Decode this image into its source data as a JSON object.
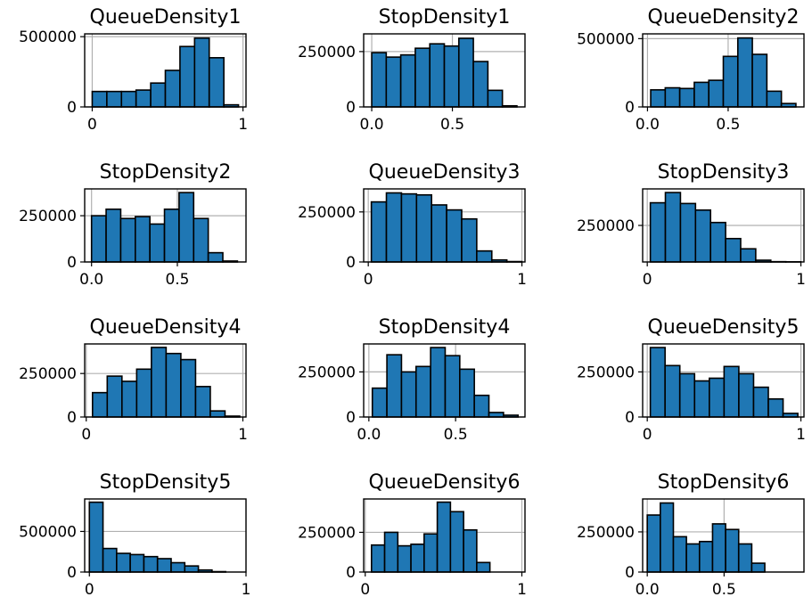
{
  "chart_data": [
    {
      "type": "bar",
      "title": "QueueDensity1",
      "bins": {
        "start": 0.0,
        "end": 0.97,
        "count": 10
      },
      "values": [
        110000,
        110000,
        110000,
        120000,
        170000,
        260000,
        430000,
        490000,
        350000,
        15000
      ],
      "xlim": [
        -0.05,
        1.02
      ],
      "ylim": [
        0,
        520000
      ],
      "xticks": [
        0,
        1
      ],
      "xtick_labels": [
        "0",
        "1"
      ],
      "yticks": [
        0,
        500000
      ],
      "ytick_labels": [
        "0",
        "500000"
      ]
    },
    {
      "type": "bar",
      "title": "StopDensity1",
      "bins": {
        "start": 0.0,
        "end": 0.9,
        "count": 10
      },
      "values": [
        245000,
        225000,
        235000,
        265000,
        285000,
        275000,
        310000,
        205000,
        75000,
        5000
      ],
      "xlim": [
        -0.05,
        0.95
      ],
      "ylim": [
        0,
        330000
      ],
      "xticks": [
        0,
        0.5
      ],
      "xtick_labels": [
        "0.0",
        "0.5"
      ],
      "yticks": [
        0,
        250000
      ],
      "ytick_labels": [
        "0",
        "250000"
      ]
    },
    {
      "type": "bar",
      "title": "QueueDensity2",
      "bins": {
        "start": 0.02,
        "end": 0.92,
        "count": 10
      },
      "values": [
        125000,
        140000,
        135000,
        180000,
        195000,
        370000,
        505000,
        385000,
        115000,
        25000
      ],
      "xlim": [
        -0.03,
        0.97
      ],
      "ylim": [
        0,
        535000
      ],
      "xticks": [
        0,
        0.5
      ],
      "xtick_labels": [
        "0.0",
        "0.5"
      ],
      "yticks": [
        0,
        500000
      ],
      "ytick_labels": [
        "0",
        "500000"
      ]
    },
    {
      "type": "bar",
      "title": "StopDensity2",
      "bins": {
        "start": 0.0,
        "end": 0.85,
        "count": 10
      },
      "values": [
        250000,
        285000,
        235000,
        245000,
        205000,
        285000,
        375000,
        235000,
        50000,
        5000
      ],
      "xlim": [
        -0.04,
        0.9
      ],
      "ylim": [
        0,
        395000
      ],
      "xticks": [
        0,
        0.5
      ],
      "xtick_labels": [
        "0.0",
        "0.5"
      ],
      "yticks": [
        0,
        250000
      ],
      "ytick_labels": [
        "0",
        "250000"
      ]
    },
    {
      "type": "bar",
      "title": "QueueDensity3",
      "bins": {
        "start": 0.02,
        "end": 1.0,
        "count": 10
      },
      "values": [
        300000,
        345000,
        340000,
        335000,
        285000,
        260000,
        215000,
        55000,
        10000,
        2000
      ],
      "xlim": [
        -0.03,
        1.02
      ],
      "ylim": [
        0,
        365000
      ],
      "xticks": [
        0,
        1
      ],
      "xtick_labels": [
        "0",
        "1"
      ],
      "yticks": [
        0,
        250000
      ],
      "ytick_labels": [
        "0",
        "250000"
      ]
    },
    {
      "type": "bar",
      "title": "StopDensity3",
      "bins": {
        "start": 0.02,
        "end": 1.0,
        "count": 10
      },
      "values": [
        405000,
        475000,
        400000,
        355000,
        270000,
        160000,
        90000,
        12000,
        2000,
        1000
      ],
      "xlim": [
        -0.03,
        1.02
      ],
      "ylim": [
        0,
        500000
      ],
      "xticks": [
        0,
        1
      ],
      "xtick_labels": [
        "0",
        "1"
      ],
      "yticks": [
        250000
      ],
      "ytick_labels": [
        "250000"
      ]
    },
    {
      "type": "bar",
      "title": "QueueDensity4",
      "bins": {
        "start": 0.04,
        "end": 0.98,
        "count": 10
      },
      "values": [
        140000,
        235000,
        205000,
        275000,
        400000,
        365000,
        330000,
        175000,
        35000,
        5000
      ],
      "xlim": [
        -0.01,
        1.02
      ],
      "ylim": [
        0,
        420000
      ],
      "xticks": [
        0,
        1
      ],
      "xtick_labels": [
        "0",
        "1"
      ],
      "yticks": [
        0,
        250000
      ],
      "ytick_labels": [
        "0",
        "250000"
      ]
    },
    {
      "type": "bar",
      "title": "StopDensity4",
      "bins": {
        "start": 0.02,
        "end": 0.86,
        "count": 10
      },
      "values": [
        160000,
        345000,
        250000,
        280000,
        385000,
        340000,
        265000,
        120000,
        25000,
        10000
      ],
      "xlim": [
        -0.03,
        0.9
      ],
      "ylim": [
        0,
        405000
      ],
      "xticks": [
        0,
        0.5
      ],
      "xtick_labels": [
        "0.0",
        "0.5"
      ],
      "yticks": [
        0,
        250000
      ],
      "ytick_labels": [
        "0",
        "250000"
      ]
    },
    {
      "type": "bar",
      "title": "QueueDensity5",
      "bins": {
        "start": 0.02,
        "end": 0.98,
        "count": 10
      },
      "values": [
        385000,
        285000,
        240000,
        200000,
        215000,
        280000,
        240000,
        165000,
        100000,
        20000
      ],
      "xlim": [
        -0.03,
        1.02
      ],
      "ylim": [
        0,
        405000
      ],
      "xticks": [
        0,
        1
      ],
      "xtick_labels": [
        "0",
        "1"
      ],
      "yticks": [
        0,
        250000
      ],
      "ytick_labels": [
        "0",
        "250000"
      ]
    },
    {
      "type": "bar",
      "title": "StopDensity5",
      "bins": {
        "start": 0.0,
        "end": 0.87,
        "count": 10
      },
      "values": [
        860000,
        290000,
        230000,
        215000,
        190000,
        165000,
        115000,
        75000,
        25000,
        5000
      ],
      "xlim": [
        -0.03,
        1.0
      ],
      "ylim": [
        0,
        900000
      ],
      "xticks": [
        0,
        1
      ],
      "xtick_labels": [
        "0",
        "1"
      ],
      "yticks": [
        0,
        500000
      ],
      "ytick_labels": [
        "0",
        "500000"
      ]
    },
    {
      "type": "bar",
      "title": "QueueDensity6",
      "bins": {
        "start": 0.04,
        "end": 0.88,
        "count": 10
      },
      "values": [
        170000,
        250000,
        165000,
        175000,
        240000,
        440000,
        380000,
        265000,
        60000,
        0
      ],
      "xlim": [
        -0.01,
        1.02
      ],
      "ylim": [
        0,
        460000
      ],
      "xticks": [
        0,
        1
      ],
      "xtick_labels": [
        "0",
        "1"
      ],
      "yticks": [
        0,
        250000
      ],
      "ytick_labels": [
        "0",
        "250000"
      ]
    },
    {
      "type": "bar",
      "title": "StopDensity6",
      "bins": {
        "start": 0.0,
        "end": 0.85,
        "count": 10
      },
      "values": [
        355000,
        430000,
        220000,
        175000,
        190000,
        300000,
        265000,
        175000,
        55000,
        0
      ],
      "xlim": [
        -0.03,
        1.02
      ],
      "ylim": [
        0,
        455000
      ],
      "xticks": [
        0,
        0.5
      ],
      "xtick_labels": [
        "0.0",
        "0.5"
      ],
      "yticks": [
        0,
        250000
      ],
      "ytick_labels": [
        "0",
        "250000"
      ]
    }
  ]
}
